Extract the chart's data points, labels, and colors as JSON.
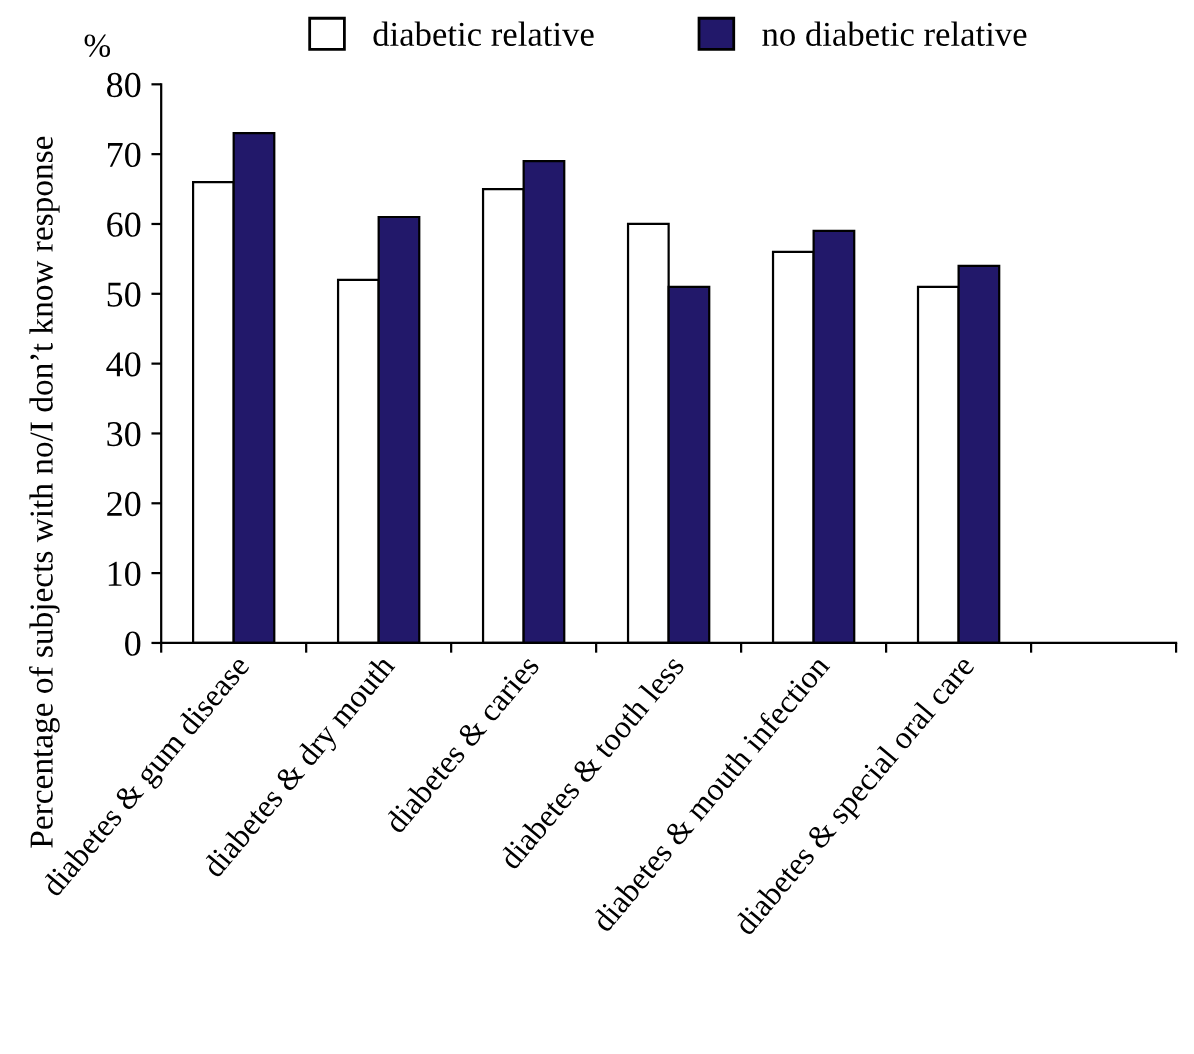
{
  "chart_data": {
    "type": "bar",
    "ylabel": "Percentage of subjects with no/I don’t know response",
    "annotations": [
      "%"
    ],
    "categories": [
      "diabetes & gum disease",
      "diabetes & dry mouth",
      "diabetes & caries",
      "diabetes & tooth less",
      "diabetes & mouth infection",
      "diabetes & special oral care",
      null
    ],
    "series": [
      {
        "name": "diabetic relative",
        "color": "#ffffff",
        "values": [
          66,
          52,
          65,
          60,
          56,
          51,
          null
        ]
      },
      {
        "name": "no diabetic relative",
        "color": "#22186a",
        "values": [
          73,
          61,
          69,
          51,
          59,
          54,
          null
        ]
      }
    ],
    "ylim": [
      0,
      80
    ],
    "yticks": [
      0,
      10,
      20,
      30,
      40,
      50,
      60,
      70,
      80
    ],
    "grid": false,
    "legend": "top"
  }
}
